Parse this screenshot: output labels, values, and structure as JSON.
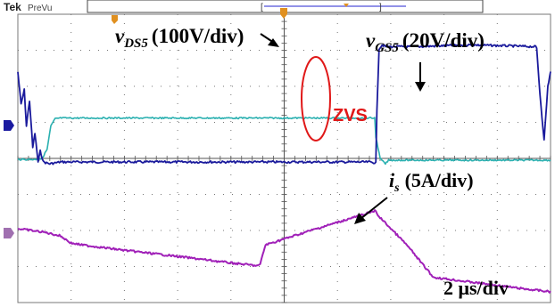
{
  "header": {
    "brand": "Tek",
    "mode": "PreVu"
  },
  "colors": {
    "vds": "#1a1a9c",
    "vgs": "#2ab0b0",
    "is": "#a020b8",
    "zvs": "#e01818",
    "grid": "#777777",
    "ch1_marker": "#1a1aa0",
    "ch3_marker": "#a070b0",
    "trigger_marker": "#e09020",
    "record_bar": "#6f6fe0"
  },
  "annotations": {
    "vds_var": "v",
    "vds_sub": "DS5",
    "vds_scale": "(100V/div)",
    "vgs_var": "v",
    "vgs_sub": "GS5",
    "vgs_scale": "(20V/div)",
    "is_var": "i",
    "is_sub": "s",
    "is_scale": "(5A/div)",
    "zvs": "ZVS",
    "timebase": "2 μs/div"
  },
  "chart_data": {
    "type": "line",
    "x_unit": "div",
    "xlim": [
      0,
      10
    ],
    "ylim": [
      0,
      8
    ],
    "grid": true,
    "series": [
      {
        "key": "vds",
        "name": "vDS5",
        "x": [
          0,
          0.06,
          0.12,
          0.16,
          0.22,
          0.28,
          0.32,
          0.38,
          0.42,
          0.48,
          0.6,
          0.8,
          2.0,
          4.0,
          6.0,
          6.4,
          6.6,
          6.72,
          6.74,
          6.78,
          6.84,
          6.9,
          7.5,
          8.5,
          9.72,
          9.74,
          9.8,
          9.88,
          9.95,
          10.0
        ],
        "y": [
          6.4,
          5.5,
          5.9,
          4.9,
          5.6,
          4.3,
          4.7,
          3.9,
          4.2,
          3.9,
          3.85,
          3.9,
          3.9,
          3.9,
          3.9,
          3.9,
          3.9,
          3.88,
          5.3,
          7.05,
          7.15,
          7.1,
          7.1,
          7.15,
          7.1,
          7.05,
          5.8,
          4.5,
          6.0,
          6.4
        ]
      },
      {
        "key": "vgs",
        "name": "vGS5",
        "x": [
          0,
          0.3,
          0.45,
          0.55,
          0.62,
          0.7,
          0.8,
          1.5,
          3.0,
          4.5,
          6.0,
          6.7,
          6.72,
          6.8,
          6.9,
          6.96,
          7.05,
          8.0,
          9.0,
          10.0
        ],
        "y": [
          3.97,
          3.97,
          3.99,
          4.25,
          4.9,
          5.1,
          5.12,
          5.12,
          5.12,
          5.12,
          5.12,
          5.12,
          4.6,
          4.0,
          3.85,
          3.95,
          3.95,
          3.95,
          3.95,
          3.95
        ]
      },
      {
        "key": "is",
        "name": "is",
        "x": [
          0,
          0.5,
          0.8,
          1.0,
          1.2,
          2.0,
          3.0,
          4.0,
          4.5,
          4.55,
          4.6,
          4.65,
          5.5,
          6.5,
          6.72,
          6.74,
          7.3,
          7.8,
          8.6,
          9.5,
          10.0
        ],
        "y": [
          2.05,
          1.95,
          1.85,
          1.65,
          1.6,
          1.45,
          1.28,
          1.1,
          1.02,
          1.05,
          1.35,
          1.6,
          2.0,
          2.45,
          2.55,
          2.45,
          1.6,
          0.7,
          0.55,
          0.38,
          0.3
        ]
      }
    ]
  }
}
